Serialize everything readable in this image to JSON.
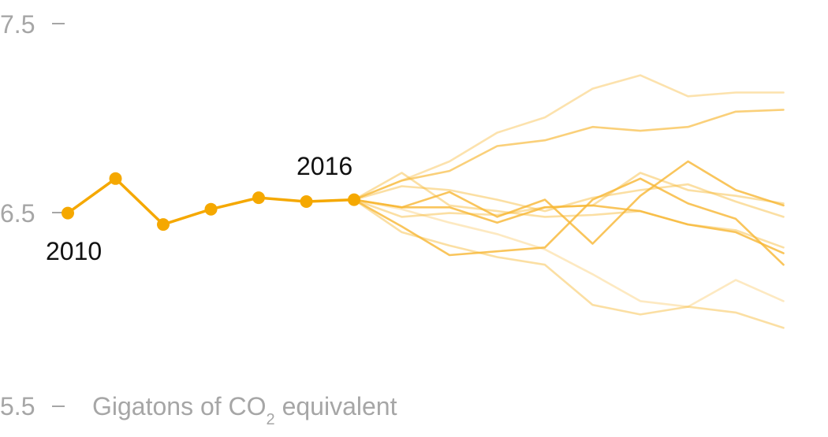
{
  "chart_data": {
    "type": "line",
    "ylim": [
      5.5,
      7.5
    ],
    "y_ticks": [
      {
        "value": 7.5,
        "label": "7.5"
      },
      {
        "value": 6.5,
        "label": "6.5"
      },
      {
        "value": 5.5,
        "label": "5.5"
      }
    ],
    "unit_label": {
      "prefix": "Gigatons of CO",
      "subscript": "2",
      "suffix": " equivalent"
    },
    "annotations": [
      {
        "text": "2010",
        "year": 2010
      },
      {
        "text": "2016",
        "year": 2016
      }
    ],
    "colors": {
      "history": "#f5a800",
      "projection": "#f7b733",
      "axis": "#a6a6a6",
      "annotation": "#111111"
    },
    "history": {
      "x": [
        2010,
        2011,
        2012,
        2013,
        2014,
        2015,
        2016
      ],
      "y": [
        6.51,
        6.69,
        6.45,
        6.53,
        6.59,
        6.57,
        6.58
      ]
    },
    "projections": [
      {
        "opacity": 0.45,
        "points": [
          [
            2016,
            6.58
          ],
          [
            2017,
            6.72
          ],
          [
            2018,
            6.55
          ],
          [
            2019,
            6.52
          ],
          [
            2020,
            6.49
          ],
          [
            2021,
            6.5
          ],
          [
            2022,
            6.52
          ],
          [
            2023,
            6.45
          ],
          [
            2024,
            6.42
          ],
          [
            2025,
            6.33
          ]
        ]
      },
      {
        "opacity": 0.4,
        "points": [
          [
            2016,
            6.58
          ],
          [
            2017,
            6.68
          ],
          [
            2018,
            6.78
          ],
          [
            2019,
            6.93
          ],
          [
            2020,
            7.01
          ],
          [
            2021,
            7.16
          ],
          [
            2022,
            7.23
          ],
          [
            2023,
            7.12
          ],
          [
            2024,
            7.14
          ],
          [
            2025,
            7.14
          ]
        ]
      },
      {
        "opacity": 0.8,
        "points": [
          [
            2016,
            6.58
          ],
          [
            2017,
            6.54
          ],
          [
            2018,
            6.54
          ],
          [
            2019,
            6.46
          ],
          [
            2020,
            6.54
          ],
          [
            2021,
            6.55
          ],
          [
            2022,
            6.52
          ],
          [
            2023,
            6.45
          ],
          [
            2024,
            6.41
          ],
          [
            2025,
            6.3
          ]
        ]
      },
      {
        "opacity": 0.45,
        "points": [
          [
            2016,
            6.58
          ],
          [
            2017,
            6.49
          ],
          [
            2018,
            6.51
          ],
          [
            2019,
            6.5
          ],
          [
            2020,
            6.54
          ],
          [
            2021,
            6.55
          ],
          [
            2022,
            6.72
          ],
          [
            2023,
            6.63
          ],
          [
            2024,
            6.6
          ],
          [
            2025,
            6.56
          ]
        ]
      },
      {
        "opacity": 0.8,
        "points": [
          [
            2016,
            6.58
          ],
          [
            2017,
            6.54
          ],
          [
            2018,
            6.62
          ],
          [
            2019,
            6.49
          ],
          [
            2020,
            6.58
          ],
          [
            2021,
            6.35
          ],
          [
            2022,
            6.6
          ],
          [
            2023,
            6.78
          ],
          [
            2024,
            6.63
          ],
          [
            2025,
            6.55
          ]
        ]
      },
      {
        "opacity": 0.3,
        "points": [
          [
            2016,
            6.58
          ],
          [
            2017,
            6.53
          ],
          [
            2018,
            6.46
          ],
          [
            2019,
            6.4
          ],
          [
            2020,
            6.32
          ],
          [
            2021,
            6.19
          ],
          [
            2022,
            6.05
          ],
          [
            2023,
            6.02
          ],
          [
            2024,
            6.16
          ],
          [
            2025,
            6.05
          ]
        ]
      },
      {
        "opacity": 0.45,
        "points": [
          [
            2016,
            6.58
          ],
          [
            2017,
            6.65
          ],
          [
            2018,
            6.63
          ],
          [
            2019,
            6.58
          ],
          [
            2020,
            6.52
          ],
          [
            2021,
            6.59
          ],
          [
            2022,
            6.63
          ],
          [
            2023,
            6.66
          ],
          [
            2024,
            6.57
          ],
          [
            2025,
            6.49
          ]
        ]
      },
      {
        "opacity": 0.8,
        "points": [
          [
            2016,
            6.58
          ],
          [
            2017,
            6.44
          ],
          [
            2018,
            6.29
          ],
          [
            2019,
            6.31
          ],
          [
            2020,
            6.33
          ],
          [
            2021,
            6.58
          ],
          [
            2022,
            6.69
          ],
          [
            2023,
            6.56
          ],
          [
            2024,
            6.48
          ],
          [
            2025,
            6.24
          ]
        ]
      },
      {
        "opacity": 0.45,
        "points": [
          [
            2016,
            6.58
          ],
          [
            2017,
            6.41
          ],
          [
            2018,
            6.34
          ],
          [
            2019,
            6.28
          ],
          [
            2020,
            6.24
          ],
          [
            2021,
            6.03
          ],
          [
            2022,
            5.98
          ],
          [
            2023,
            6.02
          ],
          [
            2024,
            5.99
          ],
          [
            2025,
            5.91
          ]
        ]
      },
      {
        "opacity": 0.65,
        "points": [
          [
            2016,
            6.58
          ],
          [
            2017,
            6.68
          ],
          [
            2018,
            6.73
          ],
          [
            2019,
            6.86
          ],
          [
            2020,
            6.89
          ],
          [
            2021,
            6.96
          ],
          [
            2022,
            6.94
          ],
          [
            2023,
            6.96
          ],
          [
            2024,
            7.04
          ],
          [
            2025,
            7.05
          ]
        ]
      }
    ]
  }
}
